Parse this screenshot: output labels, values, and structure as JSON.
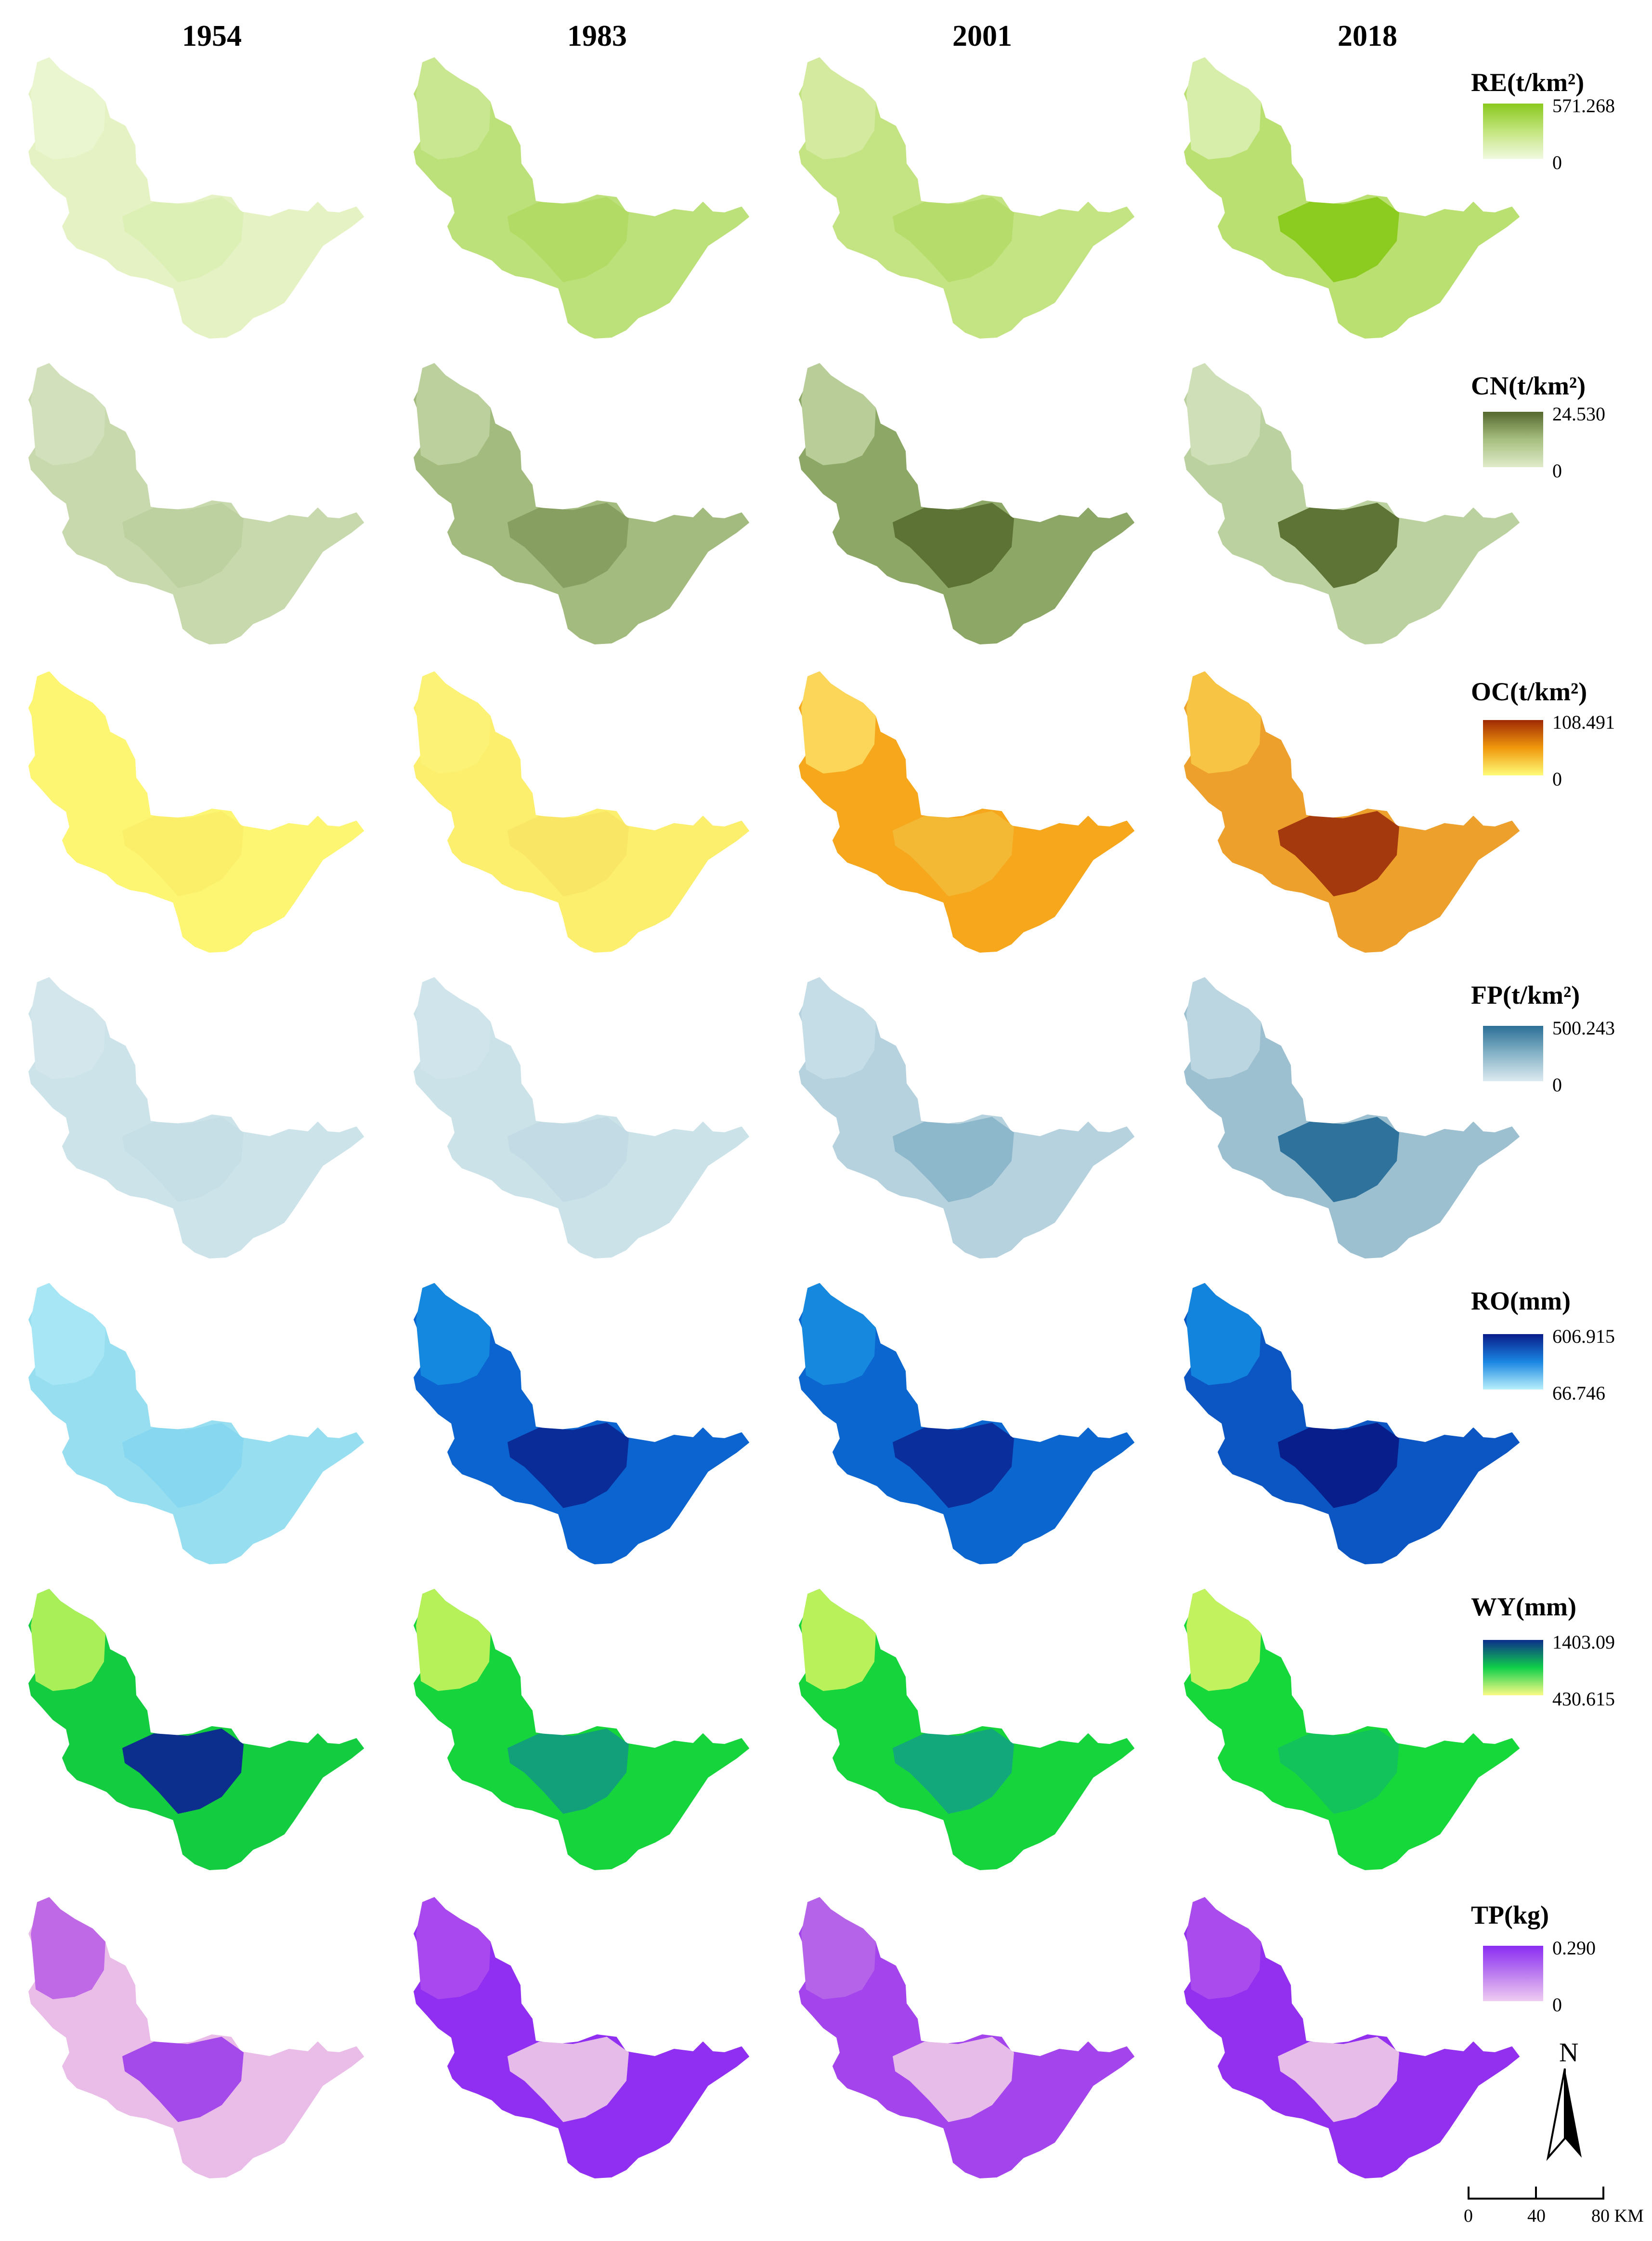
{
  "years": [
    "1954",
    "1983",
    "2001",
    "2018"
  ],
  "rows": [
    {
      "title": "RE(t/km²)",
      "max": "571.268",
      "min": "0",
      "gradient": [
        "#8ac91e",
        "#c3e57e",
        "#f1f9e0"
      ],
      "year_fills": [
        [
          "#e5f3c4",
          "#dcefb5",
          "#eaf6cf"
        ],
        [
          "#bde17a",
          "#b1db64",
          "#c9e790"
        ],
        [
          "#c4e483",
          "#b6dd6c",
          "#d3ea9f"
        ],
        [
          "#b9e071",
          "#8ccb1f",
          "#d7eeaa"
        ]
      ]
    },
    {
      "title": "CN(t/km²)",
      "max": "24.530",
      "min": "0",
      "gradient": [
        "#55682e",
        "#a7bf80",
        "#dfebc9"
      ],
      "year_fills": [
        [
          "#c7d9ad",
          "#bcd19f",
          "#d2e1bb"
        ],
        [
          "#a4bb80",
          "#889f62",
          "#bcd09d"
        ],
        [
          "#8da766",
          "#5d7335",
          "#b8cd98"
        ],
        [
          "#bcd1a0",
          "#5e7336",
          "#cfe0b8"
        ]
      ]
    },
    {
      "title": "OC(t/km²)",
      "max": "108.491",
      "min": "0",
      "gradient": [
        "#9f2905",
        "#f0980c",
        "#fffb78"
      ],
      "year_fills": [
        [
          "#fdf672",
          "#fbef6a",
          "#fdf672"
        ],
        [
          "#fbef6d",
          "#f8e664",
          "#fcf275"
        ],
        [
          "#f6a71c",
          "#f3b834",
          "#fbd659"
        ],
        [
          "#eda02c",
          "#a5390e",
          "#f7c443"
        ]
      ]
    },
    {
      "title": "FP(t/km²)",
      "max": "500.243",
      "min": "0",
      "gradient": [
        "#2b6f97",
        "#86b3c7",
        "#dceaf0"
      ],
      "year_fills": [
        [
          "#cde3ea",
          "#c6dee6",
          "#d2e6ec"
        ],
        [
          "#cbe2e9",
          "#c2dbe4",
          "#d0e5eb"
        ],
        [
          "#b6d2de",
          "#8db7ca",
          "#c5dde6"
        ],
        [
          "#9dc0d1",
          "#2f729b",
          "#bcd6e1"
        ]
      ]
    },
    {
      "title": "RO(mm)",
      "max": "606.915",
      "min": "66.746",
      "gradient": [
        "#081c89",
        "#1a86e2",
        "#b9f0fb"
      ],
      "year_fills": [
        [
          "#97dff0",
          "#86d7ef",
          "#a7e6f5"
        ],
        [
          "#0b64cf",
          "#0a2c99",
          "#1488df"
        ],
        [
          "#0c66d0",
          "#0a2e9b",
          "#1689df"
        ],
        [
          "#0c56c3",
          "#081e8b",
          "#1384dd"
        ]
      ]
    },
    {
      "title": "WY(mm)",
      "max": "1403.09",
      "min": "430.615",
      "gradient": [
        "#0c2e8c",
        "#10cf4a",
        "#fbfb85"
      ],
      "year_fills": [
        [
          "#14cc40",
          "#0c2e8c",
          "#a9ef58"
        ],
        [
          "#15d43c",
          "#11a07a",
          "#b6f159"
        ],
        [
          "#15d43c",
          "#13a87c",
          "#b9f15a"
        ],
        [
          "#16d83b",
          "#12c25a",
          "#c2f25e"
        ]
      ]
    },
    {
      "title": "TP(kg)",
      "max": "0.290",
      "min": "0",
      "gradient": [
        "#8a2df2",
        "#bb7bf0",
        "#efccf1"
      ],
      "year_fills": [
        [
          "#eabde9",
          "#a449ea",
          "#bf69e7"
        ],
        [
          "#902ff2",
          "#e6bbe9",
          "#a948ee"
        ],
        [
          "#a444ec",
          "#e8bce8",
          "#b564ea"
        ],
        [
          "#9330f0",
          "#e7bce9",
          "#a94bed"
        ]
      ]
    }
  ],
  "north_label": "N",
  "scale_labels": [
    "0",
    "40",
    "80 KM"
  ]
}
